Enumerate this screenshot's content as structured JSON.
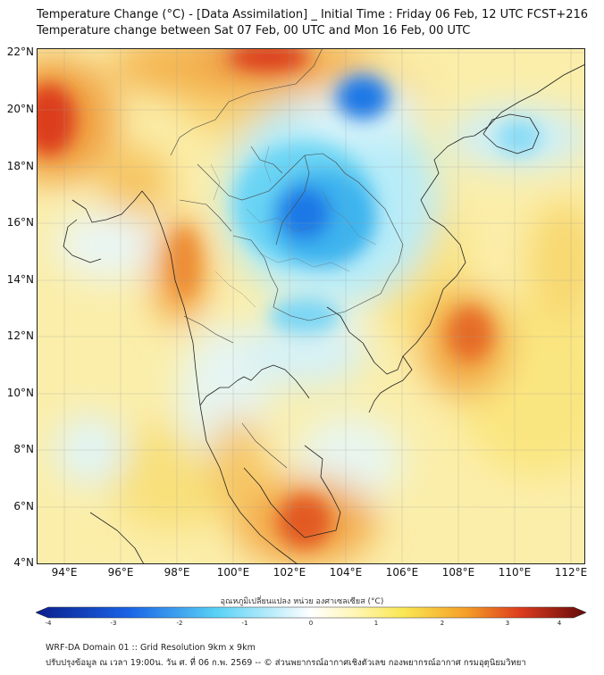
{
  "header": {
    "title_line1": "Temperature Change (°C) - [Data Assimilation] _ Initial Time : Friday 06 Feb, 12 UTC FCST+216",
    "title_line2": "Temperature change between Sat 07 Feb, 00 UTC and Mon 16 Feb, 00 UTC"
  },
  "map": {
    "lat_labels": [
      "22°N",
      "20°N",
      "18°N",
      "16°N",
      "14°N",
      "12°N",
      "10°N",
      "8°N",
      "6°N",
      "4°N"
    ],
    "lon_labels": [
      "94°E",
      "96°E",
      "98°E",
      "100°E",
      "102°E",
      "104°E",
      "106°E",
      "108°E",
      "110°E",
      "112°E"
    ]
  },
  "colorbar": {
    "title": "อุณหภูมิเปลี่ยนแปลง หน่วย องศาเซลเซียส (°C)",
    "ticks": [
      "-4",
      "-3",
      "-2",
      "-1",
      "0",
      "1",
      "2",
      "3",
      "4"
    ],
    "colors": {
      "dark_blue": "#0a1e8c",
      "blue": "#1a64e6",
      "light_blue": "#5ad2f5",
      "white": "#ffffff",
      "light_yellow": "#fff6b4",
      "yellow": "#fae650",
      "orange": "#f5a028",
      "red": "#dc3c1e",
      "dark_red": "#640a0a"
    }
  },
  "footer": {
    "line1": "WRF-DA Domain 01 :: Grid Resolution 9km x 9km",
    "line2": "ปรับปรุงข้อมูล ณ เวลา 19:00น. วัน ศ. ที่ 06 ก.พ. 2569 -- © ส่วนพยากรณ์อากาศเชิงตัวเลข กองพยากรณ์อากาศ กรมอุตุนิยมวิทยา"
  }
}
